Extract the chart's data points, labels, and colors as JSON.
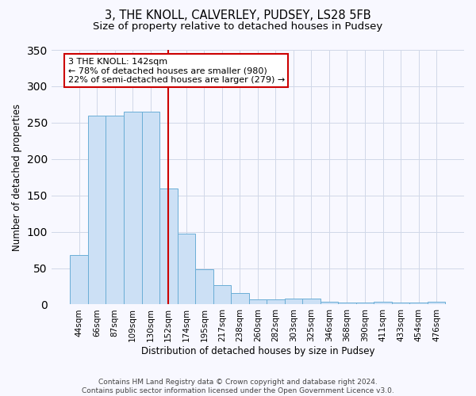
{
  "title": "3, THE KNOLL, CALVERLEY, PUDSEY, LS28 5FB",
  "subtitle": "Size of property relative to detached houses in Pudsey",
  "xlabel": "Distribution of detached houses by size in Pudsey",
  "ylabel": "Number of detached properties",
  "bar_color": "#cce0f5",
  "bar_edge_color": "#6baed6",
  "annotation_box_color": "#ffffff",
  "annotation_box_edge": "#cc0000",
  "vline_color": "#cc0000",
  "categories": [
    "44sqm",
    "66sqm",
    "87sqm",
    "109sqm",
    "130sqm",
    "152sqm",
    "174sqm",
    "195sqm",
    "217sqm",
    "238sqm",
    "260sqm",
    "282sqm",
    "303sqm",
    "325sqm",
    "346sqm",
    "368sqm",
    "390sqm",
    "411sqm",
    "433sqm",
    "454sqm",
    "476sqm"
  ],
  "values": [
    68,
    260,
    260,
    265,
    265,
    160,
    97,
    48,
    27,
    16,
    7,
    7,
    8,
    8,
    4,
    3,
    3,
    4,
    3,
    3,
    4
  ],
  "vline_position": 5.0,
  "annotation_text": "3 THE KNOLL: 142sqm\n← 78% of detached houses are smaller (980)\n22% of semi-detached houses are larger (279) →",
  "footer": "Contains HM Land Registry data © Crown copyright and database right 2024.\nContains public sector information licensed under the Open Government Licence v3.0.",
  "ylim": [
    0,
    350
  ],
  "title_fontsize": 10.5,
  "subtitle_fontsize": 9.5,
  "xlabel_fontsize": 8.5,
  "ylabel_fontsize": 8.5,
  "tick_fontsize": 7.5,
  "annotation_fontsize": 8,
  "footer_fontsize": 6.5
}
